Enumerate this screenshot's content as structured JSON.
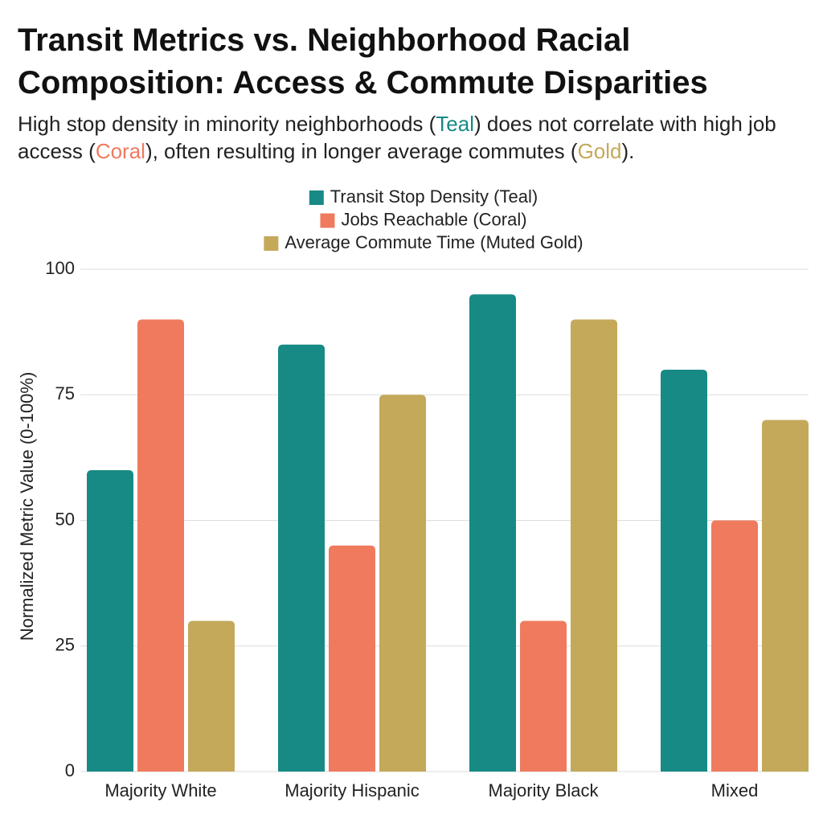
{
  "chart_data": {
    "type": "bar",
    "title": "Transit Metrics vs. Neighborhood Racial Composition: Access & Commute Disparities",
    "subtitle": [
      {
        "text": "High stop density in minority neighborhoods ("
      },
      {
        "text": "Teal",
        "color": "#178a85"
      },
      {
        "text": ") does not correlate with high job access ("
      },
      {
        "text": "Coral",
        "color": "#f07a5e"
      },
      {
        "text": "), often resulting in longer average commutes ("
      },
      {
        "text": "Gold",
        "color": "#c4a95a"
      },
      {
        "text": ")."
      }
    ],
    "ylabel": "Normalized Metric Value (0-100%)",
    "categories": [
      "Majority White",
      "Majority Hispanic",
      "Majority Black",
      "Mixed"
    ],
    "series": [
      {
        "name": "Transit Stop Density (Teal)",
        "color": "#178a85",
        "values": [
          60,
          85,
          95,
          80
        ]
      },
      {
        "name": "Jobs Reachable (Coral)",
        "color": "#f07a5e",
        "values": [
          90,
          45,
          30,
          50
        ]
      },
      {
        "name": "Average Commute Time (Muted Gold)",
        "color": "#c4a95a",
        "values": [
          30,
          75,
          90,
          70
        ]
      }
    ],
    "ylim": [
      0,
      100
    ],
    "yticks": [
      0,
      25,
      50,
      75,
      100
    ],
    "grid": true,
    "legend": "top"
  }
}
